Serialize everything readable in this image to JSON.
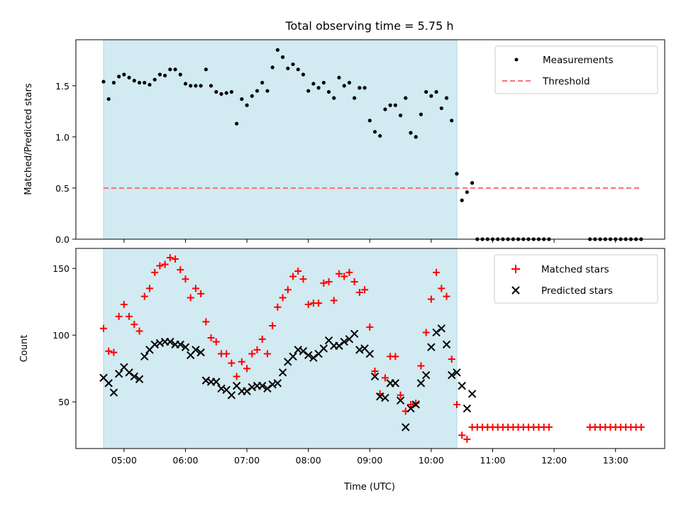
{
  "title": "Total observing time = 5.75 h",
  "xlabel": "Time (UTC)",
  "x_ticks": [
    "05:00",
    "06:00",
    "07:00",
    "08:00",
    "09:00",
    "10:00",
    "11:00",
    "12:00",
    "13:00"
  ],
  "shaded_interval": {
    "start": "04:40",
    "end": "10:25",
    "color": "#add8e6"
  },
  "colors": {
    "measurements": "#000000",
    "threshold": "#ff7070",
    "matched": "#ff0000",
    "predicted": "#000000",
    "shade": "#add8e6"
  },
  "chart_data": [
    {
      "type": "scatter",
      "ylabel": "Matched/Predicted stars",
      "ylim": [
        0,
        1.95
      ],
      "y_ticks": [
        "0.0",
        "0.5",
        "1.0",
        "1.5"
      ],
      "legend_position": "top-right",
      "series": [
        {
          "name": "Measurements",
          "marker": "dot",
          "x": [
            "04:40",
            "04:45",
            "04:50",
            "04:55",
            "05:00",
            "05:05",
            "05:10",
            "05:15",
            "05:20",
            "05:25",
            "05:30",
            "05:35",
            "05:40",
            "05:45",
            "05:50",
            "05:55",
            "06:00",
            "06:05",
            "06:10",
            "06:15",
            "06:20",
            "06:25",
            "06:30",
            "06:35",
            "06:40",
            "06:45",
            "06:50",
            "06:55",
            "07:00",
            "07:05",
            "07:10",
            "07:15",
            "07:20",
            "07:25",
            "07:30",
            "07:35",
            "07:40",
            "07:45",
            "07:50",
            "07:55",
            "08:00",
            "08:05",
            "08:10",
            "08:15",
            "08:20",
            "08:25",
            "08:30",
            "08:35",
            "08:40",
            "08:45",
            "08:50",
            "08:55",
            "09:00",
            "09:05",
            "09:10",
            "09:15",
            "09:20",
            "09:25",
            "09:30",
            "09:35",
            "09:40",
            "09:45",
            "09:50",
            "09:55",
            "10:00",
            "10:05",
            "10:10",
            "10:15",
            "10:20",
            "10:25",
            "10:30",
            "10:35",
            "10:40",
            "10:45",
            "10:50",
            "10:55",
            "11:00",
            "11:05",
            "11:10",
            "11:15",
            "11:20",
            "11:25",
            "11:30",
            "11:35",
            "11:40",
            "11:45",
            "11:50",
            "11:55",
            "12:35",
            "12:40",
            "12:45",
            "12:50",
            "12:55",
            "13:00",
            "13:05",
            "13:10",
            "13:15",
            "13:20",
            "13:25"
          ],
          "values": [
            1.54,
            1.37,
            1.53,
            1.59,
            1.61,
            1.58,
            1.55,
            1.53,
            1.53,
            1.51,
            1.56,
            1.61,
            1.6,
            1.66,
            1.66,
            1.61,
            1.52,
            1.5,
            1.5,
            1.5,
            1.66,
            1.5,
            1.44,
            1.42,
            1.43,
            1.44,
            1.13,
            1.37,
            1.31,
            1.4,
            1.45,
            1.53,
            1.45,
            1.68,
            1.85,
            1.78,
            1.67,
            1.71,
            1.66,
            1.61,
            1.45,
            1.52,
            1.48,
            1.53,
            1.44,
            1.38,
            1.58,
            1.5,
            1.53,
            1.38,
            1.48,
            1.48,
            1.16,
            1.05,
            1.01,
            1.27,
            1.31,
            1.31,
            1.21,
            1.38,
            1.04,
            1.0,
            1.22,
            1.44,
            1.4,
            1.44,
            1.28,
            1.38,
            1.16,
            0.64,
            0.38,
            0.46,
            0.55,
            0.0,
            0.0,
            0.0,
            0.0,
            0.0,
            0.0,
            0.0,
            0.0,
            0.0,
            0.0,
            0.0,
            0.0,
            0.0,
            0.0,
            0.0,
            0.0,
            0.0,
            0.0,
            0.0,
            0.0,
            0.0,
            0.0,
            0.0,
            0.0,
            0.0,
            0.0
          ]
        },
        {
          "name": "Threshold",
          "marker": "dashed-line",
          "x": [
            "04:40",
            "13:25"
          ],
          "values": [
            0.5,
            0.5
          ]
        }
      ]
    },
    {
      "type": "scatter",
      "ylabel": "Count",
      "ylim": [
        15,
        165
      ],
      "y_ticks": [
        "50",
        "100",
        "150"
      ],
      "legend_position": "top-right",
      "series": [
        {
          "name": "Matched stars",
          "marker": "plus",
          "x": [
            "04:40",
            "04:45",
            "04:50",
            "04:55",
            "05:00",
            "05:05",
            "05:10",
            "05:15",
            "05:20",
            "05:25",
            "05:30",
            "05:35",
            "05:40",
            "05:45",
            "05:50",
            "05:55",
            "06:00",
            "06:05",
            "06:10",
            "06:15",
            "06:20",
            "06:25",
            "06:30",
            "06:35",
            "06:40",
            "06:45",
            "06:50",
            "06:55",
            "07:00",
            "07:05",
            "07:10",
            "07:15",
            "07:20",
            "07:25",
            "07:30",
            "07:35",
            "07:40",
            "07:45",
            "07:50",
            "07:55",
            "08:00",
            "08:05",
            "08:10",
            "08:15",
            "08:20",
            "08:25",
            "08:30",
            "08:35",
            "08:40",
            "08:45",
            "08:50",
            "08:55",
            "09:00",
            "09:05",
            "09:10",
            "09:15",
            "09:20",
            "09:25",
            "09:30",
            "09:35",
            "09:40",
            "09:45",
            "09:50",
            "09:55",
            "10:00",
            "10:05",
            "10:10",
            "10:15",
            "10:20",
            "10:25",
            "10:30",
            "10:35",
            "10:40",
            "10:45",
            "10:50",
            "10:55",
            "11:00",
            "11:05",
            "11:10",
            "11:15",
            "11:20",
            "11:25",
            "11:30",
            "11:35",
            "11:40",
            "11:45",
            "11:50",
            "11:55",
            "12:35",
            "12:40",
            "12:45",
            "12:50",
            "12:55",
            "13:00",
            "13:05",
            "13:10",
            "13:15",
            "13:20",
            "13:25"
          ],
          "values": [
            105,
            88,
            87,
            114,
            123,
            114,
            108,
            103,
            129,
            135,
            147,
            152,
            153,
            158,
            157,
            149,
            142,
            128,
            135,
            131,
            110,
            98,
            95,
            86,
            86,
            79,
            69,
            80,
            75,
            86,
            89,
            97,
            86,
            107,
            121,
            128,
            134,
            144,
            148,
            142,
            123,
            124,
            124,
            139,
            140,
            126,
            146,
            144,
            147,
            140,
            132,
            134,
            106,
            73,
            56,
            68,
            84,
            84,
            55,
            43,
            48,
            49,
            77,
            102,
            127,
            147,
            135,
            129,
            82,
            48,
            25,
            22,
            31,
            31,
            31,
            31,
            31,
            31,
            31,
            31,
            31,
            31,
            31,
            31,
            31,
            31,
            31,
            31,
            31,
            31,
            31,
            31,
            31,
            31,
            31,
            31,
            31,
            31,
            31
          ]
        },
        {
          "name": "Predicted stars",
          "marker": "x",
          "x": [
            "04:40",
            "04:45",
            "04:50",
            "04:55",
            "05:00",
            "05:05",
            "05:10",
            "05:15",
            "05:20",
            "05:25",
            "05:30",
            "05:35",
            "05:40",
            "05:45",
            "05:50",
            "05:55",
            "06:00",
            "06:05",
            "06:10",
            "06:15",
            "06:20",
            "06:25",
            "06:30",
            "06:35",
            "06:40",
            "06:45",
            "06:50",
            "06:55",
            "07:00",
            "07:05",
            "07:10",
            "07:15",
            "07:20",
            "07:25",
            "07:30",
            "07:35",
            "07:40",
            "07:45",
            "07:50",
            "07:55",
            "08:00",
            "08:05",
            "08:10",
            "08:15",
            "08:20",
            "08:25",
            "08:30",
            "08:35",
            "08:40",
            "08:45",
            "08:50",
            "08:55",
            "09:00",
            "09:05",
            "09:10",
            "09:15",
            "09:20",
            "09:25",
            "09:30",
            "09:35",
            "09:40",
            "09:45",
            "09:50",
            "09:55",
            "10:00",
            "10:05",
            "10:10",
            "10:15",
            "10:20",
            "10:25",
            "10:30",
            "10:35",
            "10:40"
          ],
          "values": [
            68,
            64,
            57,
            71,
            76,
            72,
            69,
            67,
            84,
            89,
            93,
            94,
            95,
            95,
            93,
            93,
            91,
            85,
            89,
            87,
            66,
            65,
            65,
            60,
            59,
            55,
            62,
            58,
            58,
            61,
            62,
            62,
            60,
            63,
            64,
            72,
            80,
            84,
            89,
            88,
            85,
            83,
            86,
            90,
            96,
            92,
            92,
            95,
            97,
            101,
            89,
            90,
            86,
            69,
            54,
            53,
            64,
            64,
            51,
            31,
            45,
            48,
            64,
            70,
            91,
            102,
            105,
            93,
            70,
            72,
            62,
            45,
            56
          ]
        }
      ]
    }
  ]
}
